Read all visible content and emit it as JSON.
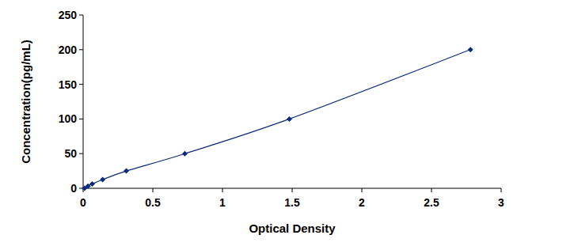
{
  "chart_data": {
    "type": "line",
    "x_label": "Optical Density",
    "y_label": "Concentration(pg/mL)",
    "x": [
      0.01,
      0.035,
      0.065,
      0.14,
      0.31,
      0.73,
      1.48,
      2.78
    ],
    "values": [
      0,
      3.12,
      6.25,
      12.5,
      25,
      50,
      100,
      200
    ],
    "color": "#0b2a7a",
    "marker": "diamond",
    "xlim": [
      0,
      3
    ],
    "xticks": [
      0,
      0.5,
      1,
      1.5,
      2,
      2.5,
      3
    ],
    "ylim": [
      0,
      250
    ],
    "yticks": [
      0,
      50,
      100,
      150,
      200,
      250
    ],
    "grid": false
  }
}
